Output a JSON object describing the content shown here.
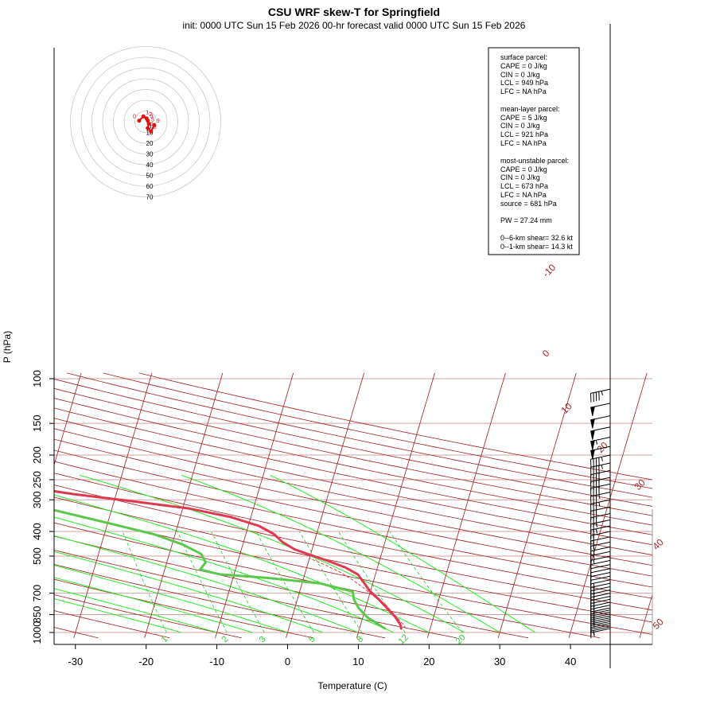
{
  "header": {
    "title": "CSU WRF skew-T for Springfield",
    "subtitle": "init: 0000 UTC Sun 15 Feb 2026     00-hr forecast valid 0000 UTC Sun 15 Feb 2026"
  },
  "colors": {
    "temperature": "#e0394f",
    "dewpoint": "#5ac84a",
    "isotherm": "#a51e1e",
    "dry_adiabat": "#a51e1e",
    "moist_adiabat": "#22ee22",
    "mixing_ratio": "#22cc22",
    "isobar": "#d7a0a0",
    "parcel": "#e0394f",
    "wind": "#000000",
    "hodograph": "#e01010"
  },
  "chart_data": {
    "type": "line",
    "chart_kind": "skew-T log-P diagram",
    "xlabel": "Temperature (C)",
    "ylabel": "P (hPa)",
    "y_scale": "log",
    "x_ticks": [
      -30,
      -20,
      -10,
      0,
      10,
      20,
      30,
      40
    ],
    "y_ticks": [
      100,
      150,
      200,
      250,
      300,
      400,
      500,
      700,
      850,
      1000
    ],
    "isotherm_labels": [
      "-10",
      "0",
      "10",
      "20",
      "30",
      "40",
      "50"
    ],
    "isotherm_values": [
      -10,
      0,
      10,
      20,
      30,
      40,
      50
    ],
    "mixing_ratio_labels": [
      "1",
      "2",
      "3",
      "5",
      "8",
      "12",
      "20"
    ],
    "mixing_ratio_values": [
      1,
      2,
      3,
      5,
      8,
      12,
      20
    ],
    "series": [
      {
        "key": "temperature",
        "points": [
          [
            15.9,
            965
          ],
          [
            15.6,
            930
          ],
          [
            14.6,
            870
          ],
          [
            13.0,
            800
          ],
          [
            11.5,
            740
          ],
          [
            10.0,
            690
          ],
          [
            8.8,
            640
          ],
          [
            7.5,
            590
          ],
          [
            5.5,
            555
          ],
          [
            2.5,
            520
          ],
          [
            0.0,
            495
          ],
          [
            -2.5,
            470
          ],
          [
            -4.5,
            440
          ],
          [
            -6.0,
            410
          ],
          [
            -8.5,
            380
          ],
          [
            -13.0,
            350
          ],
          [
            -19.0,
            325
          ],
          [
            -27.0,
            305
          ],
          [
            -36.0,
            285
          ],
          [
            -44.0,
            265
          ],
          [
            -50.0,
            250
          ],
          [
            -53.0,
            240
          ],
          [
            -54.0,
            225
          ],
          [
            -55.0,
            210
          ],
          [
            -56.5,
            195
          ],
          [
            -58.0,
            180
          ],
          [
            -59.0,
            167
          ],
          [
            -60.0,
            155
          ],
          [
            -64.0,
            140
          ],
          [
            -68.5,
            125
          ],
          [
            -72.0,
            115
          ],
          [
            -75.0,
            108
          ]
        ]
      },
      {
        "key": "dewpoint",
        "points": [
          [
            13.6,
            965
          ],
          [
            12.5,
            930
          ],
          [
            10.6,
            870
          ],
          [
            9.0,
            800
          ],
          [
            8.0,
            740
          ],
          [
            7.5,
            690
          ],
          [
            2.5,
            640
          ],
          [
            -5.0,
            610
          ],
          [
            -12.0,
            590
          ],
          [
            -15.0,
            565
          ],
          [
            -14.5,
            530
          ],
          [
            -15.5,
            490
          ],
          [
            -18.5,
            450
          ],
          [
            -23.0,
            410
          ],
          [
            -30.0,
            370
          ],
          [
            -38.0,
            330
          ],
          [
            -47.0,
            295
          ],
          [
            -57.0,
            265
          ],
          [
            -67.0,
            240
          ],
          [
            -77.0,
            220
          ],
          [
            -82.0,
            208
          ]
        ]
      },
      {
        "key": "parcel",
        "points": [
          [
            16.5,
            960
          ],
          [
            15.8,
            920
          ],
          [
            14.8,
            870
          ],
          [
            13.7,
            820
          ],
          [
            12.5,
            770
          ],
          [
            10.5,
            715
          ],
          [
            8.8,
            665
          ],
          [
            7.0,
            620
          ],
          [
            5.0,
            580
          ],
          [
            2.7,
            545
          ],
          [
            0.0,
            510
          ]
        ]
      }
    ],
    "wind_pressures": [
      965,
      950,
      935,
      920,
      905,
      890,
      875,
      860,
      845,
      830,
      815,
      800,
      780,
      760,
      740,
      720,
      700,
      680,
      660,
      640,
      620,
      600,
      580,
      560,
      540,
      520,
      500,
      480,
      460,
      440,
      420,
      400,
      380,
      360,
      340,
      320,
      300,
      280,
      260,
      245,
      230,
      215,
      200,
      185,
      170,
      155,
      140,
      125,
      110
    ],
    "wind_speeds_kt": [
      5,
      5,
      10,
      10,
      10,
      15,
      15,
      15,
      15,
      15,
      15,
      15,
      15,
      15,
      15,
      15,
      15,
      15,
      15,
      15,
      15,
      10,
      10,
      10,
      10,
      10,
      15,
      15,
      15,
      15,
      20,
      20,
      25,
      25,
      30,
      30,
      35,
      35,
      40,
      40,
      40,
      45,
      45,
      50,
      55,
      50,
      50,
      50,
      45
    ],
    "hodograph": {
      "ring_labels": [
        "10",
        "20",
        "30",
        "40",
        "50",
        "60",
        "70"
      ],
      "point_labels": [
        "0",
        "1",
        "2",
        "3",
        "5",
        "6",
        "8",
        "9"
      ],
      "points_kt": [
        [
          -6,
          1
        ],
        [
          -2,
          5
        ],
        [
          1,
          3
        ],
        [
          2,
          1
        ],
        [
          3,
          -2
        ],
        [
          2,
          -6
        ],
        [
          5,
          -9
        ],
        [
          8,
          -3
        ]
      ]
    },
    "parameters": {
      "surface": {
        "header": "surface parcel:",
        "cape": "CAPE = 0 J/kg",
        "cin": "CIN = 0 J/kg",
        "lcl": "LCL = 949 hPa",
        "lfc": "LFC = NA hPa"
      },
      "mean_layer": {
        "header": "mean-layer parcel:",
        "cape": "CAPE = 5 J/kg",
        "cin": "CIN = 0 J/kg",
        "lcl": "LCL = 921 hPa",
        "lfc": "LFC = NA hPa"
      },
      "most_unstable": {
        "header": "most-unstable parcel:",
        "cape": "CAPE = 0 J/kg",
        "cin": "CIN = 0 J/kg",
        "lcl": "LCL = 673 hPa",
        "lfc": "LFC = NA hPa",
        "source": "source = 681 hPa"
      },
      "pw": "PW =  27.24 mm",
      "shear_0_6": "0--6-km shear= 32.6 kt",
      "shear_0_1": "0--1-km shear= 14.3 kt"
    }
  }
}
